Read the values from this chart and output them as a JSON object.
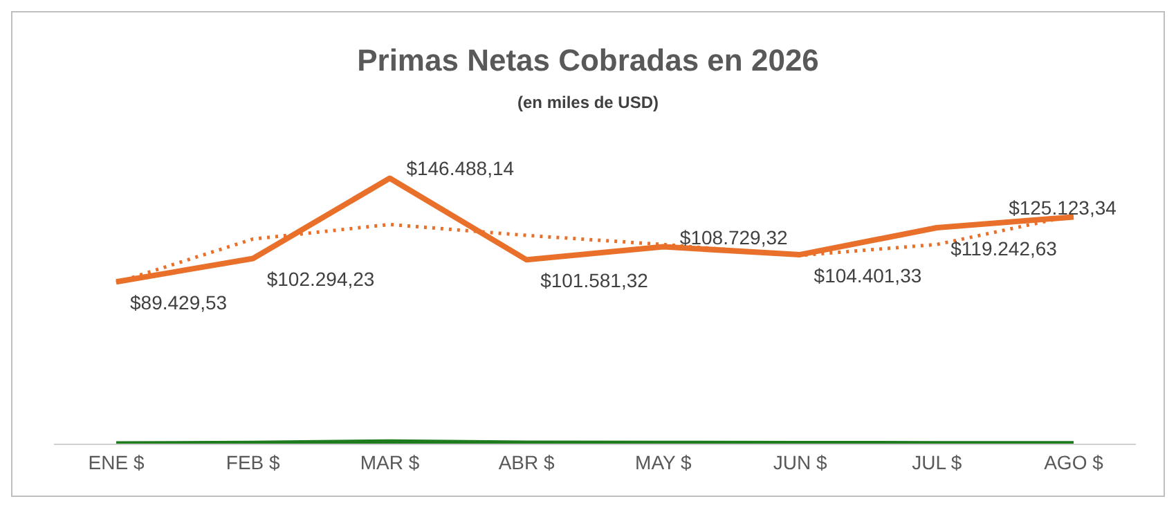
{
  "chart_data": {
    "type": "line",
    "title": "Primas Netas Cobradas en 2026",
    "subtitle": "(en miles de USD)",
    "categories": [
      "ENE $",
      "FEB $",
      "MAR $",
      "ABR $",
      "MAY $",
      "JUN $",
      "JUL $",
      "AGO $"
    ],
    "series": [
      {
        "color": "#e8702a",
        "values": [
          89429.53,
          102294.23,
          146488.14,
          101581.32,
          108729.32,
          104401.33,
          119242.63,
          125123.34
        ],
        "value_labels": [
          "$89.429,53",
          "$102.294,23",
          "$146.488,14",
          "$101.581,32",
          "$108.729,32",
          "$104.401,33",
          "$119.242,63",
          "$125.123,34"
        ]
      },
      {
        "type": "line",
        "line_style": "dotted",
        "color": "#e8702a",
        "x": [
          "ENE $",
          "FEB $",
          "MAR $",
          "ABR $",
          "MAY $",
          "JUN $",
          "JUL $",
          "AGO $"
        ],
        "values": [
          89000,
          113000,
          121000,
          115000,
          110000,
          104000,
          110000,
          126000
        ]
      },
      {
        "color": "#1e7b1e",
        "values": [
          200,
          500,
          1200,
          600,
          500,
          400,
          300,
          300
        ]
      }
    ]
  }
}
